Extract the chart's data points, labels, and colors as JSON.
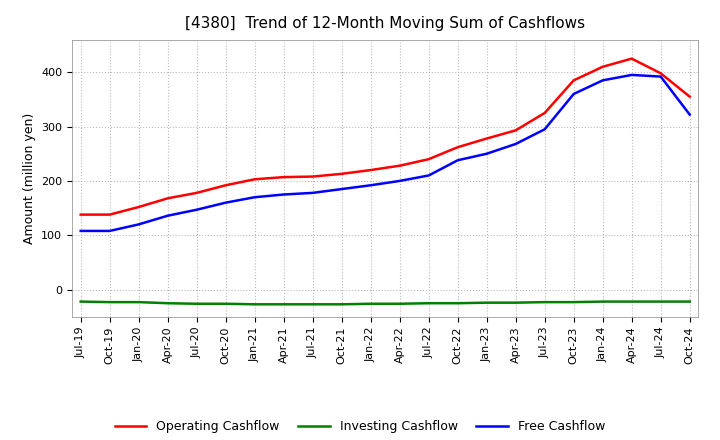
{
  "title": "[4380]  Trend of 12-Month Moving Sum of Cashflows",
  "ylabel": "Amount (million yen)",
  "background_color": "#ffffff",
  "grid_color": "#bbbbbb",
  "x_labels": [
    "Jul-19",
    "Oct-19",
    "Jan-20",
    "Apr-20",
    "Jul-20",
    "Oct-20",
    "Jan-21",
    "Apr-21",
    "Jul-21",
    "Oct-21",
    "Jan-22",
    "Apr-22",
    "Jul-22",
    "Oct-22",
    "Jan-23",
    "Apr-23",
    "Jul-23",
    "Oct-23",
    "Jan-24",
    "Apr-24",
    "Jul-24",
    "Oct-24"
  ],
  "operating_cashflow": [
    138,
    138,
    152,
    168,
    178,
    192,
    203,
    207,
    208,
    213,
    220,
    228,
    240,
    262,
    278,
    293,
    325,
    385,
    410,
    425,
    398,
    355
  ],
  "investing_cashflow": [
    -22,
    -23,
    -23,
    -25,
    -26,
    -26,
    -27,
    -27,
    -27,
    -27,
    -26,
    -26,
    -25,
    -25,
    -24,
    -24,
    -23,
    -23,
    -22,
    -22,
    -22,
    -22
  ],
  "free_cashflow": [
    108,
    108,
    120,
    136,
    147,
    160,
    170,
    175,
    178,
    185,
    192,
    200,
    210,
    238,
    250,
    268,
    295,
    360,
    385,
    395,
    392,
    322
  ],
  "op_color": "#ff0000",
  "inv_color": "#008000",
  "free_color": "#0000ff",
  "ylim_min": -50,
  "ylim_max": 460,
  "yticks": [
    0,
    100,
    200,
    300,
    400
  ],
  "title_fontsize": 11,
  "tick_fontsize": 8,
  "ylabel_fontsize": 9
}
